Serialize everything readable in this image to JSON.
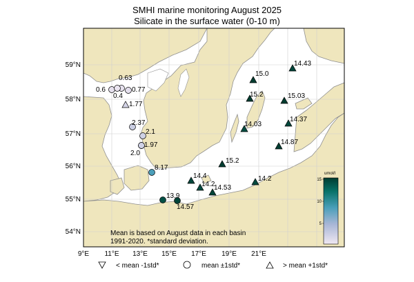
{
  "title_line1": "SMHI marine monitoring August 2025",
  "title_line2": "Silicate in the surface water (0-10 m)",
  "lat_ticks": [
    "59°N",
    "58°N",
    "57°N",
    "56°N",
    "55°N",
    "54°N"
  ],
  "lon_ticks": [
    "9°E",
    "11°E",
    "13°E",
    "15°E",
    "17°E",
    "19°E",
    "21°E"
  ],
  "note_line1": "Mean is based on August data in each basin",
  "note_line2": "1991-2020. *standard deviation.",
  "colorbar": {
    "unit_label": "umol/l",
    "ticks": [
      "15",
      "10",
      "5"
    ],
    "colors": [
      "#f0e8f2",
      "#a8b6d6",
      "#4a9fb9",
      "#087268",
      "#003c30"
    ]
  },
  "legend": {
    "below_label": "< mean -1std*",
    "mean_label": "mean ±1std*",
    "above_label": "> mean +1std*"
  },
  "colors": {
    "land": "#efe6bd",
    "sea": "#ffffff",
    "coast": "#9a9a9a",
    "grid": "#cfcfcf"
  },
  "stations": [
    {
      "value": "0.63",
      "symbol": "circle"
    },
    {
      "value": "0.6",
      "symbol": "circle"
    },
    {
      "value": "0.4",
      "symbol": "circle"
    },
    {
      "value": "0.77",
      "symbol": "circle"
    },
    {
      "value": "1.77",
      "symbol": "triangle"
    },
    {
      "value": "2.37",
      "symbol": "circle"
    },
    {
      "value": "2.1",
      "symbol": "circle"
    },
    {
      "value": "1.97",
      "symbol": "circle"
    },
    {
      "value": "2.0",
      "symbol": "circle"
    },
    {
      "value": "8.17",
      "symbol": "circle"
    },
    {
      "value": "13.9",
      "symbol": "circle"
    },
    {
      "value": "14.57",
      "symbol": "circle"
    },
    {
      "value": "14.4",
      "symbol": "triangle"
    },
    {
      "value": "14.2",
      "symbol": "triangle"
    },
    {
      "value": "14.53",
      "symbol": "triangle"
    },
    {
      "value": "15.2",
      "symbol": "triangle"
    },
    {
      "value": "14.2",
      "symbol": "triangle"
    },
    {
      "value": "14.03",
      "symbol": "triangle"
    },
    {
      "value": "15.2",
      "symbol": "triangle"
    },
    {
      "value": "15.0",
      "symbol": "triangle"
    },
    {
      "value": "15.03",
      "symbol": "triangle"
    },
    {
      "value": "14.43",
      "symbol": "triangle"
    },
    {
      "value": "14.37",
      "symbol": "triangle"
    },
    {
      "value": "14.87",
      "symbol": "triangle"
    }
  ]
}
